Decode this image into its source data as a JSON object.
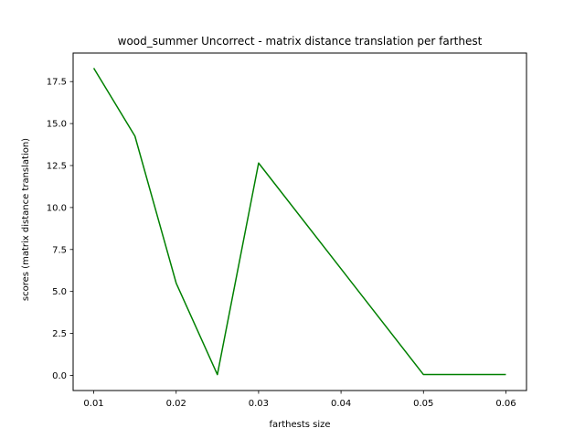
{
  "chart_data": {
    "type": "line",
    "title": "wood_summer Uncorrect - matrix distance translation per farthest",
    "xlabel": "farthests size",
    "ylabel": "scores (matrix distance translation)",
    "xlim": [
      0.0075,
      0.0625
    ],
    "ylim": [
      -0.9,
      19.2
    ],
    "xticks": [
      0.01,
      0.02,
      0.03,
      0.04,
      0.05,
      0.06
    ],
    "xtick_labels": [
      "0.01",
      "0.02",
      "0.03",
      "0.04",
      "0.05",
      "0.06"
    ],
    "yticks": [
      0.0,
      2.5,
      5.0,
      7.5,
      10.0,
      12.5,
      15.0,
      17.5
    ],
    "ytick_labels": [
      "0.0",
      "2.5",
      "5.0",
      "7.5",
      "10.0",
      "12.5",
      "15.0",
      "17.5"
    ],
    "grid": false,
    "series": [
      {
        "color": "#008000",
        "x": [
          0.01,
          0.015,
          0.02,
          0.025,
          0.03,
          0.05,
          0.06
        ],
        "y": [
          18.3,
          14.25,
          5.5,
          0.05,
          12.65,
          0.05,
          0.05
        ]
      }
    ]
  }
}
